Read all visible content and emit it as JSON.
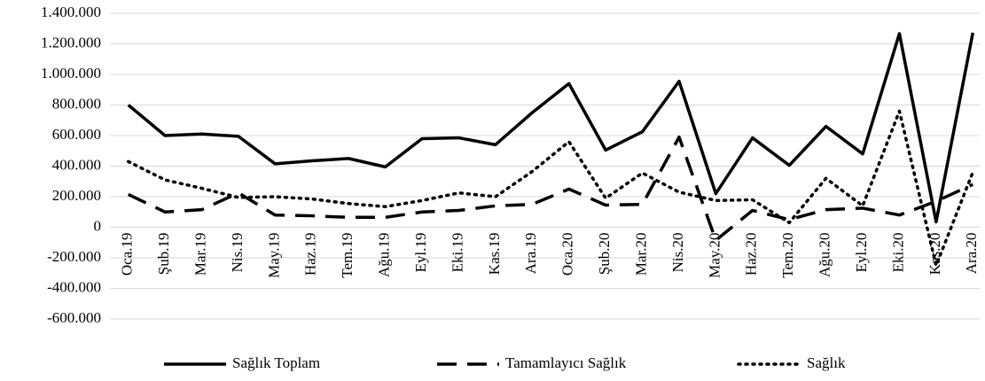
{
  "chart_data": {
    "type": "line",
    "categories": [
      "Oca.19",
      "Şub.19",
      "Mar.19",
      "Nis.19",
      "May.19",
      "Haz.19",
      "Tem.19",
      "Ağu.19",
      "Eyl.19",
      "Eki.19",
      "Kas.19",
      "Ara.19",
      "Oca.20",
      "Şub.20",
      "Mar.20",
      "Nis.20",
      "May.20",
      "Haz.20",
      "Tem.20",
      "Ağu.20",
      "Eyl.20",
      "Eki.20",
      "Kas.20",
      "Ara.20"
    ],
    "series": [
      {
        "name": "Sağlık Toplam",
        "color": "#000000",
        "dash": "solid",
        "values": [
          800000,
          600000,
          610000,
          595000,
          415000,
          435000,
          450000,
          395000,
          580000,
          585000,
          540000,
          750000,
          940000,
          505000,
          625000,
          955000,
          220000,
          585000,
          405000,
          660000,
          480000,
          1267000,
          35000,
          1273000
        ]
      },
      {
        "name": "Tamamlayıcı Sağlık",
        "color": "#000000",
        "dash": "dashed",
        "values": [
          215000,
          100000,
          115000,
          225000,
          80000,
          75000,
          65000,
          65000,
          100000,
          110000,
          140000,
          150000,
          250000,
          145000,
          150000,
          590000,
          -85000,
          110000,
          50000,
          115000,
          125000,
          80000,
          170000,
          280000
        ]
      },
      {
        "name": "Sağlık",
        "color": "#000000",
        "dash": "dotted",
        "values": [
          430000,
          310000,
          255000,
          195000,
          200000,
          185000,
          155000,
          135000,
          175000,
          225000,
          200000,
          365000,
          560000,
          190000,
          355000,
          230000,
          175000,
          180000,
          30000,
          320000,
          140000,
          760000,
          -250000,
          360000
        ]
      }
    ],
    "ylim": [
      -600000,
      1400000
    ],
    "yticks": [
      {
        "value": -600000,
        "label": "-600.000"
      },
      {
        "value": -400000,
        "label": "-400.000"
      },
      {
        "value": -200000,
        "label": "-200.000"
      },
      0,
      {
        "value": 200000,
        "label": "200.000"
      },
      {
        "value": 400000,
        "label": "400.000"
      },
      {
        "value": 600000,
        "label": "600.000"
      },
      {
        "value": 800000,
        "label": "800.000"
      },
      {
        "value": 1000000,
        "label": "1.000.000"
      },
      {
        "value": 1200000,
        "label": "1.200.000"
      },
      {
        "value": 1400000,
        "label": "1.400.000"
      }
    ],
    "grid": true,
    "legend": "bottom"
  }
}
